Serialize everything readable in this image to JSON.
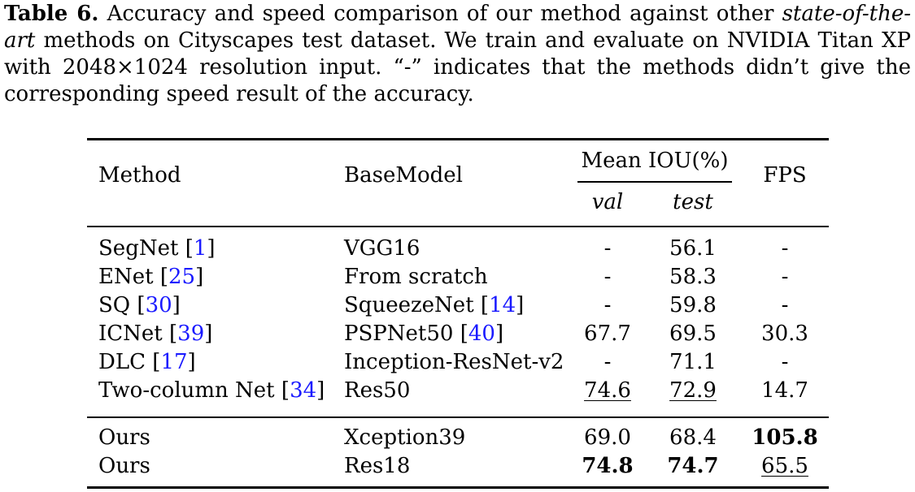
{
  "caption": {
    "label": "Table 6.",
    "text_a": " Accuracy and speed comparison of our method against other ",
    "emph": "state-of-the-art",
    "text_b": " methods on Cityscapes test dataset. We train and evaluate on NVIDIA Titan XP with 2048×1024 resolution input. “-” indicates that the methods didn’t give the corresponding speed result of the accuracy."
  },
  "table": {
    "headers": {
      "method": "Method",
      "basemodel": "BaseModel",
      "miou": "Mean IOU(%)",
      "val": "val",
      "test": "test",
      "fps": "FPS"
    },
    "rows": [
      {
        "method": "SegNet",
        "method_ref": "1",
        "base": "VGG16",
        "base_ref": "",
        "val": "-",
        "test": "56.1",
        "fps": "-"
      },
      {
        "method": "ENet",
        "method_ref": "25",
        "base": "From scratch",
        "base_ref": "",
        "val": "-",
        "test": "58.3",
        "fps": "-"
      },
      {
        "method": "SQ",
        "method_ref": "30",
        "base": "SqueezeNet",
        "base_ref": "14",
        "val": "-",
        "test": "59.8",
        "fps": "-"
      },
      {
        "method": "ICNet",
        "method_ref": "39",
        "base": "PSPNet50",
        "base_ref": "40",
        "val": "67.7",
        "test": "69.5",
        "fps": "30.3"
      },
      {
        "method": "DLC",
        "method_ref": "17",
        "base": "Inception-ResNet-v2",
        "base_ref": "",
        "val": "-",
        "test": "71.1",
        "fps": "-"
      },
      {
        "method": "Two-column Net",
        "method_ref": "34",
        "base": "Res50",
        "base_ref": "",
        "val": "74.6",
        "test": "72.9",
        "fps": "14.7"
      }
    ],
    "ours": [
      {
        "method": "Ours",
        "base": "Xception39",
        "val": "69.0",
        "test": "68.4",
        "fps": "105.8"
      },
      {
        "method": "Ours",
        "base": "Res18",
        "val": "74.8",
        "test": "74.7",
        "fps": "65.5"
      }
    ]
  }
}
